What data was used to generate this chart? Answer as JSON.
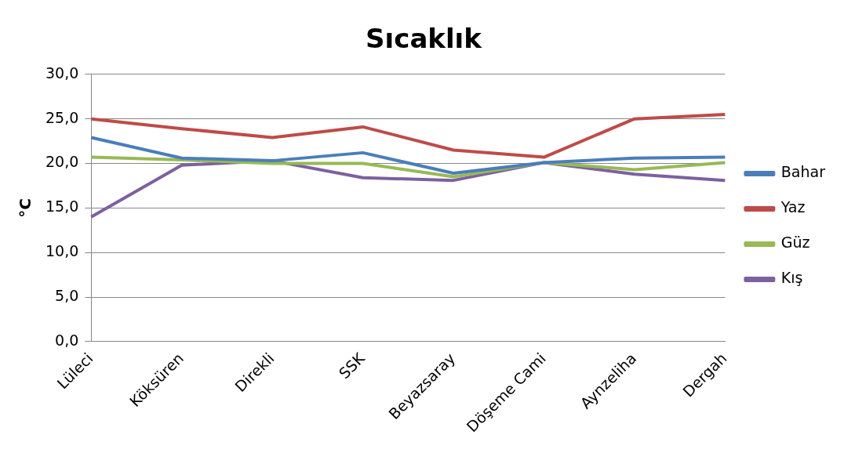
{
  "chart_data": {
    "type": "line",
    "title": "Sıcaklık",
    "ylabel": "°C",
    "categories": [
      "Lüleci",
      "Köksüren",
      "Direkli",
      "SSK",
      "Beyazsaray",
      "Döşeme Cami",
      "Aynzeliha",
      "Dergah"
    ],
    "series": [
      {
        "name": "Bahar",
        "color": "#4a7ebb",
        "values": [
          22.9,
          20.6,
          20.3,
          21.2,
          18.9,
          20.1,
          20.6,
          20.7
        ]
      },
      {
        "name": "Yaz",
        "color": "#be4b48",
        "values": [
          25.0,
          23.9,
          22.9,
          24.1,
          21.5,
          20.7,
          25.0,
          25.5
        ]
      },
      {
        "name": "Güz",
        "color": "#98b954",
        "values": [
          20.7,
          20.4,
          20.0,
          20.0,
          18.5,
          20.1,
          19.3,
          20.1
        ]
      },
      {
        "name": "Kış",
        "color": "#7d60a0",
        "values": [
          14.0,
          19.8,
          20.3,
          18.4,
          18.1,
          20.1,
          18.8,
          18.1
        ]
      }
    ],
    "ylim": [
      0,
      30
    ],
    "yticks": [
      {
        "value": 0,
        "label": "0,0"
      },
      {
        "value": 5,
        "label": "5,0"
      },
      {
        "value": 10,
        "label": "10,0"
      },
      {
        "value": 15,
        "label": "15,0"
      },
      {
        "value": 20,
        "label": "20,0"
      },
      {
        "value": 25,
        "label": "25,0"
      },
      {
        "value": 30,
        "label": "30,0"
      }
    ],
    "grid": "y",
    "legend": "right",
    "marker": "none",
    "line_style": "solid"
  }
}
